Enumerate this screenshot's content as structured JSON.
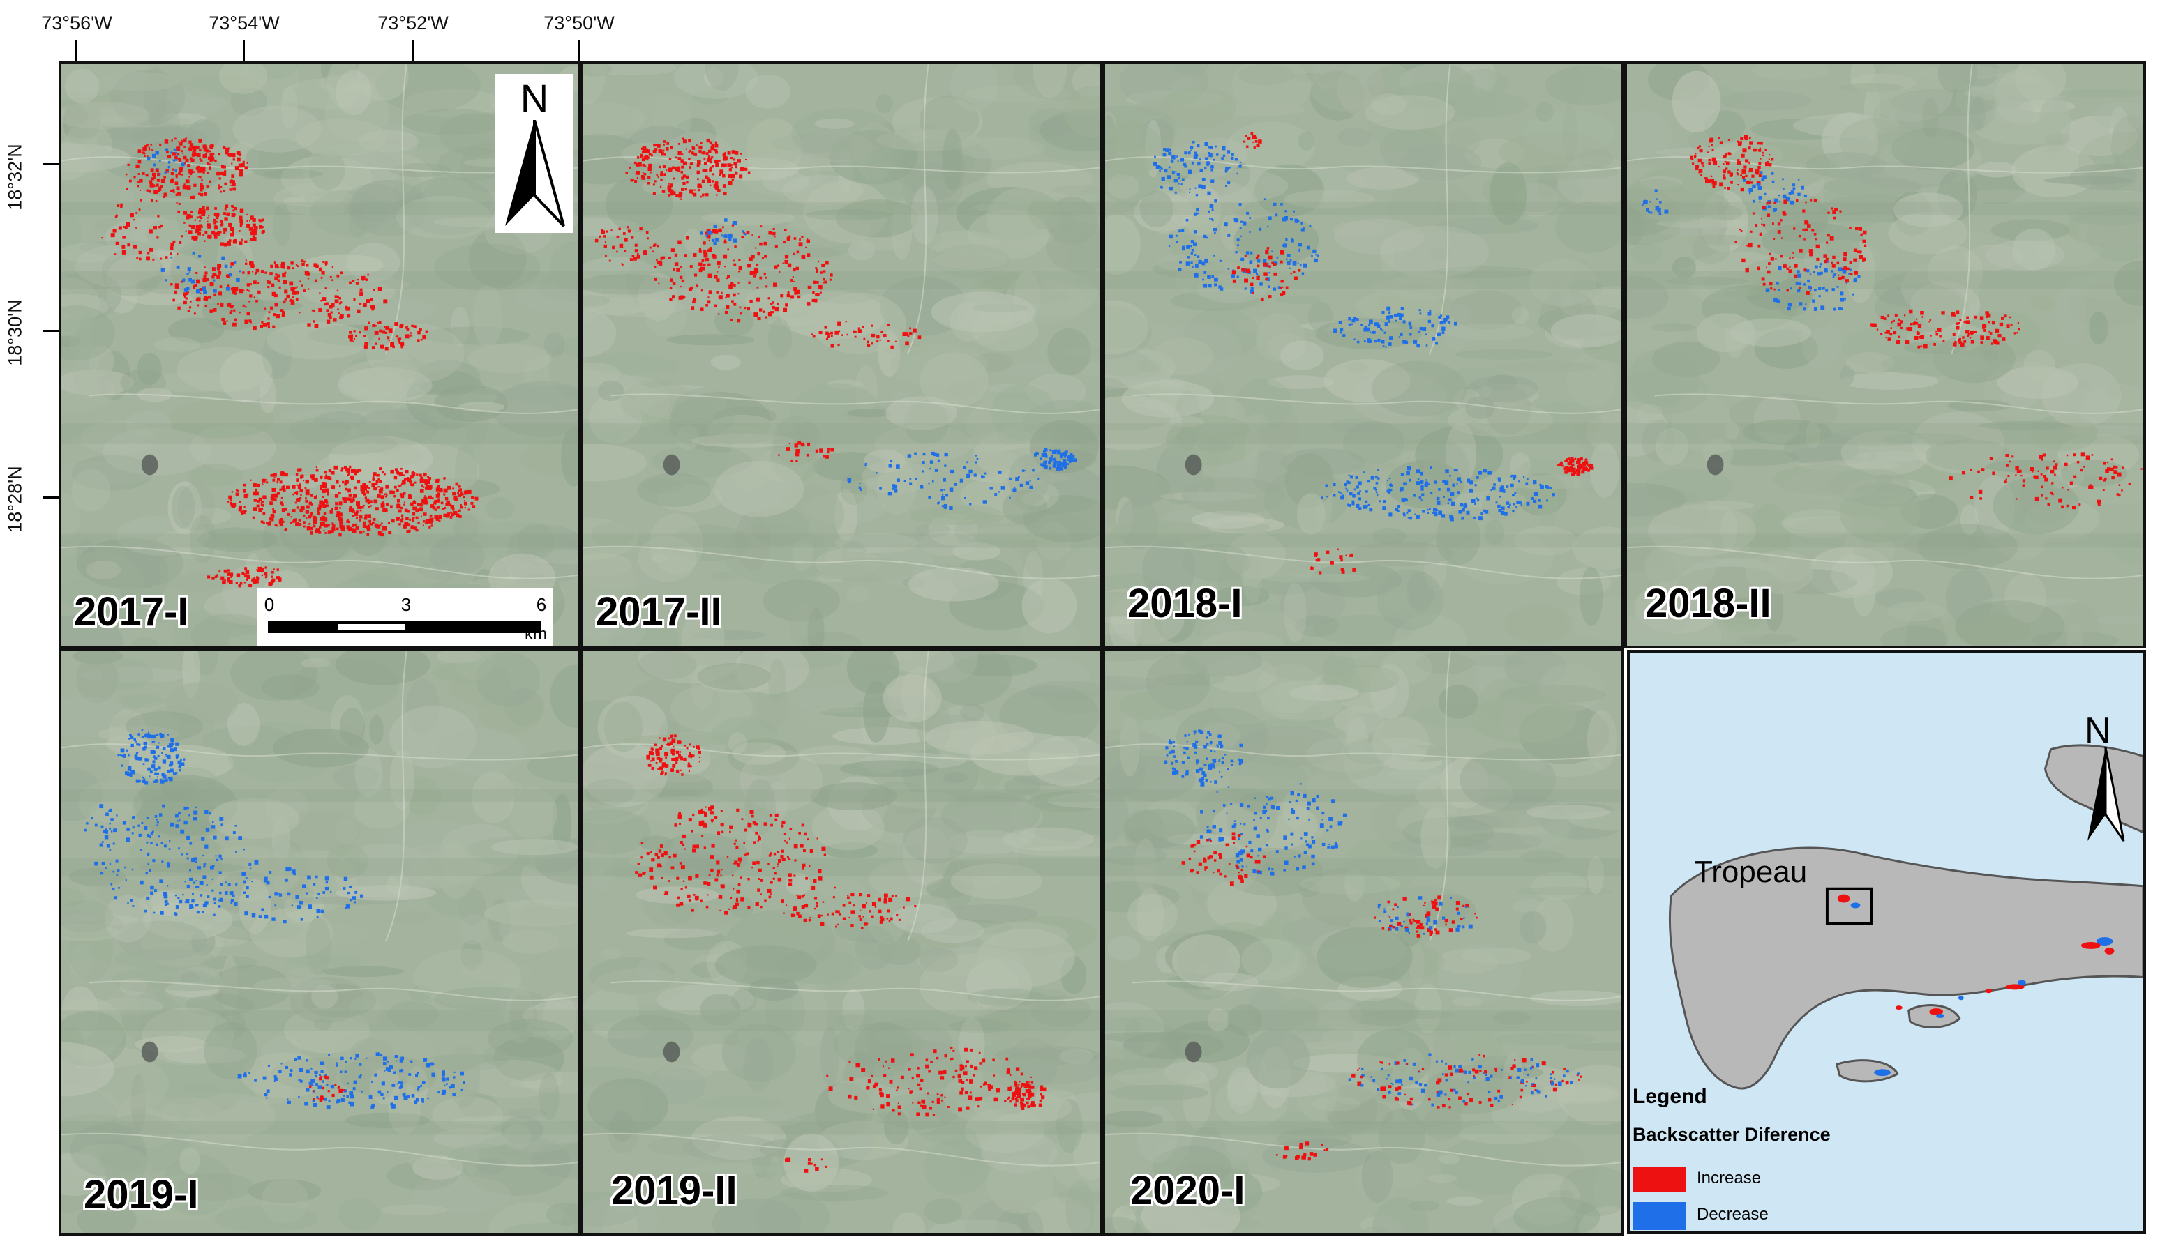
{
  "longitude_labels": [
    "73°56'W",
    "73°54'W",
    "73°52'W",
    "73°50'W"
  ],
  "latitude_labels": [
    "18°32'N",
    "18°30'N",
    "18°28'N"
  ],
  "panels": [
    {
      "label": "2017-I",
      "dominant_change": "increase"
    },
    {
      "label": "2017-II",
      "dominant_change": "increase"
    },
    {
      "label": "2018-I",
      "dominant_change": "decrease"
    },
    {
      "label": "2018-II",
      "dominant_change": "increase"
    },
    {
      "label": "2019-I",
      "dominant_change": "decrease"
    },
    {
      "label": "2019-II",
      "dominant_change": "increase"
    },
    {
      "label": "2020-I",
      "dominant_change": "mixed"
    }
  ],
  "north_arrow": {
    "label": "N",
    "icon": "north-arrow-icon"
  },
  "scale_bar": {
    "ticks": [
      "0",
      "3",
      "6"
    ],
    "unit": "km"
  },
  "inset": {
    "north_label": "N",
    "place_label": "Tropeau",
    "legend_title": "Legend",
    "legend_subtitle": "Backscatter Diference",
    "legend_items": [
      {
        "label": "Increase",
        "color": "#ee1111"
      },
      {
        "label": "Decrease",
        "color": "#1f6fe8"
      }
    ]
  },
  "colors": {
    "increase": "#ee1111",
    "decrease": "#1f6fe8",
    "sea": "#cfe6f4",
    "land": "#b8b8b8"
  }
}
